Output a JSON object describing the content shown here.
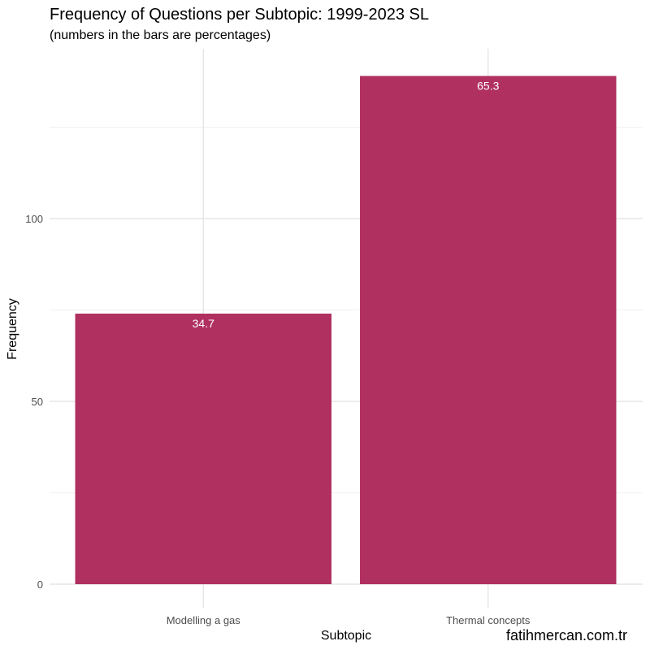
{
  "chart_data": {
    "type": "bar",
    "title": "Frequency of Questions per Subtopic: 1999-2023 SL",
    "subtitle": "(numbers in the bars are percentages)",
    "xlabel": "Subtopic",
    "ylabel": "Frequency",
    "categories": [
      "Modelling a gas",
      "Thermal concepts"
    ],
    "values": [
      74,
      139
    ],
    "bar_labels": [
      "34.7",
      "65.3"
    ],
    "yticks": [
      0,
      50,
      100
    ],
    "ylim": [
      0,
      145
    ],
    "grid": true,
    "bar_color": "#B03060",
    "caption": "fatihmercan.com.tr"
  }
}
